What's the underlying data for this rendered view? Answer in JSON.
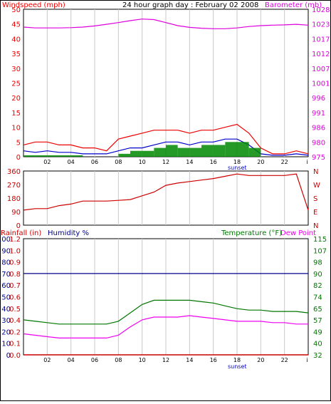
{
  "colors": {
    "wind": "#ee0000",
    "wind_avg": "#0000cc",
    "gust_fill": "#008800",
    "baro": "#dd00dd",
    "winddir": "#cc0000",
    "rain": "#cc0000",
    "humidity": "#000088",
    "temperature": "#007700",
    "dewpoint": "#ee00ee",
    "grid": "#c8c8c8"
  },
  "x_ticks": [
    "02",
    "04",
    "06",
    "08",
    "10",
    "12",
    "14",
    "16",
    "18",
    "20",
    "22",
    "i"
  ],
  "sunset_label": "sunset",
  "chart_data": [
    {
      "type": "line",
      "title": "24 hour graph day : February 02 2008",
      "ylabel_left": "Windspeed (mph)",
      "ylabel_right": "Barometer (mb)",
      "ylim_left": [
        0,
        50
      ],
      "ylim_right": [
        975,
        1028
      ],
      "left_ticks": [
        "0",
        "5",
        "10",
        "15",
        "20",
        "25",
        "30",
        "35",
        "40",
        "45",
        "50"
      ],
      "right_ticks": [
        "975",
        "980",
        "986",
        "991",
        "996",
        "1001",
        "1007",
        "1012",
        "1017",
        "1023",
        "1028"
      ],
      "x_hours": [
        0,
        1,
        2,
        3,
        4,
        5,
        6,
        7,
        8,
        9,
        10,
        11,
        12,
        13,
        14,
        15,
        16,
        17,
        18,
        19,
        20,
        21,
        22,
        23,
        24
      ],
      "series": [
        {
          "key": "barometer",
          "axis": "right",
          "values": [
            1021.6,
            1021.3,
            1021.3,
            1021.3,
            1021.4,
            1021.6,
            1022,
            1022.6,
            1023.2,
            1023.9,
            1024.5,
            1024.3,
            1023.2,
            1022.1,
            1021.5,
            1021.2,
            1021,
            1021,
            1021.3,
            1021.8,
            1022.1,
            1022.3,
            1022.4,
            1022.6,
            1022.3
          ]
        },
        {
          "key": "windspeed",
          "axis": "left",
          "values": [
            4,
            5,
            5,
            4,
            4,
            3,
            3,
            2,
            6,
            7,
            8,
            9,
            9,
            9,
            8,
            9,
            9,
            10,
            11,
            8,
            3,
            1,
            1,
            2,
            1
          ]
        },
        {
          "key": "wind_avg",
          "axis": "left",
          "values": [
            2,
            1.5,
            2,
            1.5,
            1.5,
            1,
            1,
            1,
            2,
            3,
            3,
            4,
            5,
            5,
            4,
            5,
            5,
            6,
            6,
            4,
            1,
            0.5,
            0.5,
            1,
            0.5
          ]
        },
        {
          "key": "gust",
          "axis": "left",
          "values": [
            0.5,
            0.5,
            0.5,
            0.5,
            0.5,
            0,
            0,
            0,
            1,
            2,
            2,
            3,
            4,
            3,
            3,
            4,
            4,
            5,
            5,
            3,
            0,
            0,
            0,
            0,
            0
          ]
        }
      ]
    },
    {
      "type": "line",
      "ylim": [
        0,
        360
      ],
      "left_ticks": [
        "0",
        "90",
        "180",
        "270",
        "360"
      ],
      "right_labels": [
        "N",
        "E",
        "S",
        "W",
        "N"
      ],
      "x_hours": [
        0,
        1,
        2,
        3,
        4,
        5,
        6,
        7,
        8,
        9,
        10,
        11,
        12,
        13,
        14,
        15,
        16,
        17,
        18,
        19,
        20,
        21,
        22,
        23,
        24
      ],
      "series": [
        {
          "key": "wind_direction",
          "values": [
            100,
            110,
            110,
            130,
            140,
            160,
            160,
            160,
            165,
            170,
            195,
            220,
            265,
            280,
            290,
            300,
            310,
            325,
            340,
            330,
            330,
            330,
            330,
            340,
            100
          ]
        }
      ]
    },
    {
      "type": "line",
      "ylabel_rain": "Rainfall (in)",
      "ylabel_humidity": "Humidity %",
      "ylabel_temp": "Temperature (°F)",
      "ylabel_dew": "Dew Point",
      "ylim_humidity": [
        0,
        100
      ],
      "ylim_temp": [
        32,
        115
      ],
      "rain_ticks": [
        "0.0",
        "0.1",
        "0.2",
        "0.4",
        "0.5",
        "0.6",
        "0.7",
        "0.8",
        "0.9",
        "1.0",
        "1.2"
      ],
      "humidity_ticks": [
        "0",
        "10",
        "20",
        "30",
        "40",
        "50",
        "60",
        "70",
        "80",
        "90",
        "100"
      ],
      "temp_ticks": [
        "32",
        "40",
        "49",
        "57",
        "65",
        "74",
        "82",
        "90",
        "98",
        "107",
        "115"
      ],
      "x_hours": [
        0,
        1,
        2,
        3,
        4,
        5,
        6,
        7,
        8,
        9,
        10,
        11,
        12,
        13,
        14,
        15,
        16,
        17,
        18,
        19,
        20,
        21,
        22,
        23,
        24
      ],
      "series": [
        {
          "key": "humidity",
          "values": [
            70,
            70,
            70,
            70,
            70,
            70,
            70,
            70,
            70,
            70,
            70,
            70,
            70,
            70,
            70,
            70,
            70,
            70,
            70,
            70,
            70,
            70,
            70,
            70,
            70
          ]
        },
        {
          "key": "rainfall",
          "values": [
            0,
            0,
            0,
            0,
            0,
            0,
            0,
            0,
            0,
            0,
            0,
            0,
            0,
            0,
            0,
            0,
            0,
            0,
            0,
            0,
            0,
            0,
            0,
            0,
            0
          ]
        },
        {
          "key": "temperature",
          "values": [
            57,
            56,
            55,
            54,
            54,
            54,
            54,
            54,
            56,
            62,
            68,
            71,
            71,
            71,
            71,
            70,
            69,
            67,
            65,
            64,
            64,
            63,
            63,
            63,
            62
          ]
        },
        {
          "key": "dewpoint",
          "values": [
            47,
            46,
            45,
            44,
            44,
            44,
            44,
            44,
            46,
            52,
            57,
            59,
            59,
            59,
            60,
            59,
            58,
            57,
            56,
            56,
            56,
            55,
            55,
            54,
            54
          ]
        }
      ]
    }
  ]
}
